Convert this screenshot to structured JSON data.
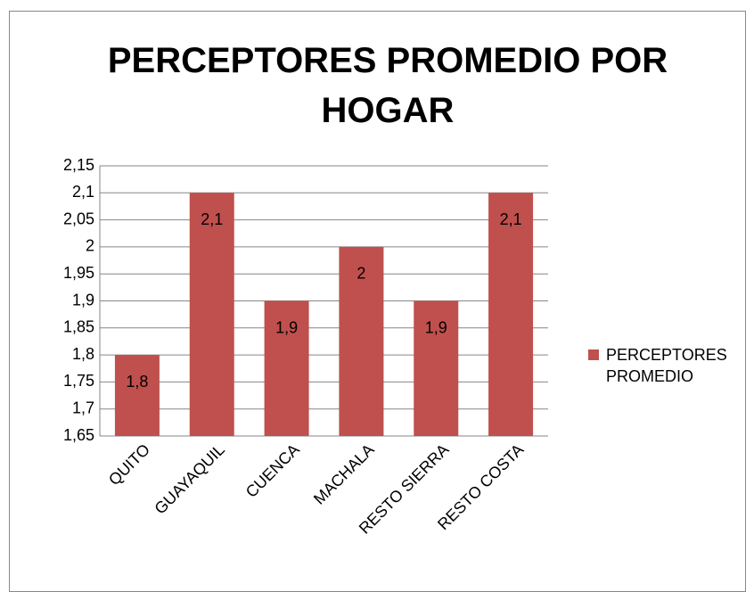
{
  "chart_data": {
    "type": "bar",
    "title": "PERCEPTORES PROMEDIO POR HOGAR",
    "categories": [
      "QUITO",
      "GUAYAQUIL",
      "CUENCA",
      "MACHALA",
      "RESTO SIERRA",
      "RESTO COSTA"
    ],
    "series": [
      {
        "name": "PERCEPTORES PROMEDIO",
        "color": "#c0504d",
        "values": [
          1.8,
          2.1,
          1.9,
          2,
          1.9,
          2.1
        ],
        "value_labels": [
          "1,8",
          "2,1",
          "1,9",
          "2",
          "1,9",
          "2,1"
        ]
      }
    ],
    "ylim": [
      1.65,
      2.15
    ],
    "yticks": [
      {
        "value": 1.65,
        "label": "1,65"
      },
      {
        "value": 1.7,
        "label": "1,7"
      },
      {
        "value": 1.75,
        "label": "1,75"
      },
      {
        "value": 1.8,
        "label": "1,8"
      },
      {
        "value": 1.85,
        "label": "1,85"
      },
      {
        "value": 1.9,
        "label": "1,9"
      },
      {
        "value": 1.95,
        "label": "1,95"
      },
      2,
      {
        "value": 2.05,
        "label": "2,05"
      },
      {
        "value": 2.1,
        "label": "2,1"
      },
      {
        "value": 2.15,
        "label": "2,15"
      }
    ],
    "grid": true,
    "legend": "right"
  }
}
